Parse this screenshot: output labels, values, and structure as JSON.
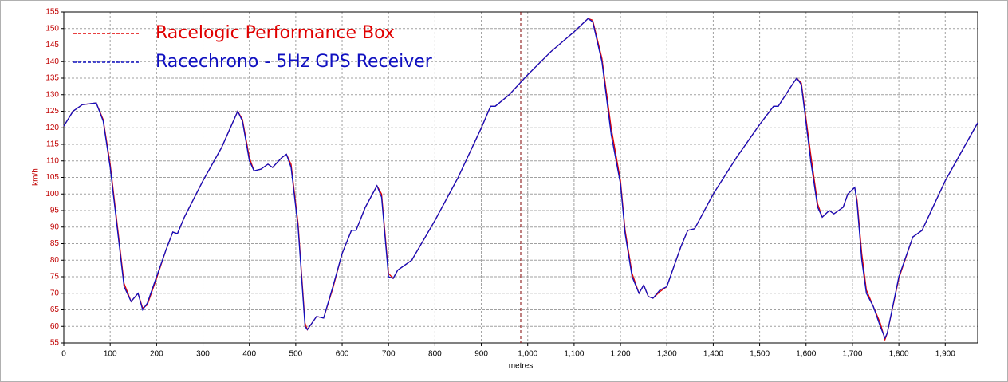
{
  "chart_data": {
    "type": "line",
    "xlabel": "metres",
    "ylabel": "km/h",
    "xlim": [
      0,
      1970
    ],
    "ylim": [
      55,
      155
    ],
    "xticks": [
      0,
      100,
      200,
      300,
      400,
      500,
      600,
      700,
      800,
      900,
      {
        "value": 1000,
        "label": "1,000"
      },
      {
        "value": 1100,
        "label": "1,100"
      },
      {
        "value": 1200,
        "label": "1,200"
      },
      {
        "value": 1300,
        "label": "1,300"
      },
      {
        "value": 1400,
        "label": "1,400"
      },
      {
        "value": 1500,
        "label": "1,500"
      },
      {
        "value": 1600,
        "label": "1,600"
      },
      {
        "value": 1700,
        "label": "1,700"
      },
      {
        "value": 1800,
        "label": "1,800"
      },
      {
        "value": 1900,
        "label": "1,900"
      }
    ],
    "yticks": [
      55,
      60,
      65,
      70,
      75,
      80,
      85,
      90,
      95,
      100,
      105,
      110,
      115,
      120,
      125,
      130,
      135,
      140,
      145,
      150,
      155
    ],
    "grid": true,
    "cursor": 985,
    "legend_position": "upper left",
    "x": [
      0,
      20,
      40,
      70,
      85,
      100,
      115,
      130,
      145,
      160,
      170,
      180,
      200,
      220,
      235,
      245,
      260,
      300,
      340,
      375,
      385,
      400,
      410,
      425,
      440,
      450,
      470,
      480,
      490,
      505,
      520,
      525,
      545,
      560,
      580,
      600,
      620,
      630,
      650,
      675,
      685,
      700,
      710,
      720,
      750,
      800,
      850,
      900,
      920,
      930,
      960,
      1000,
      1050,
      1100,
      1130,
      1140,
      1160,
      1180,
      1200,
      1210,
      1225,
      1240,
      1250,
      1260,
      1270,
      1285,
      1300,
      1330,
      1345,
      1360,
      1400,
      1450,
      1500,
      1530,
      1540,
      1570,
      1580,
      1590,
      1610,
      1625,
      1635,
      1650,
      1660,
      1680,
      1690,
      1705,
      1710,
      1720,
      1730,
      1745,
      1760,
      1770,
      1775,
      1800,
      1830,
      1850,
      1900,
      1970
    ],
    "series": [
      {
        "name": "Racelogic Performance Box",
        "color": "#e00000",
        "values": [
          120.5,
          125,
          127,
          127.5,
          122.5,
          109,
          91,
          73,
          67.5,
          70,
          65.5,
          66.5,
          74.5,
          83,
          88.5,
          88,
          93,
          104,
          114,
          125,
          122.5,
          111,
          107,
          107.5,
          109,
          108,
          111,
          112,
          109,
          91,
          61,
          59,
          63,
          62.5,
          71.5,
          82,
          89,
          89,
          96,
          102.5,
          100,
          76,
          74.5,
          77,
          80,
          92,
          105,
          120,
          126.5,
          126.5,
          130,
          136,
          143,
          149,
          153,
          152.5,
          141,
          120,
          104,
          89,
          76,
          70,
          72.5,
          69,
          68.5,
          70.5,
          72,
          84,
          89,
          89.5,
          100,
          111,
          121,
          126.5,
          126.5,
          133,
          135,
          133.5,
          112,
          97,
          93,
          95,
          94,
          96,
          100,
          102,
          98,
          82,
          71,
          66,
          61,
          56,
          58,
          74.5,
          87,
          89,
          104,
          121.5
        ]
      },
      {
        "name": "Racechrono - 5Hz GPS Receiver",
        "color": "#1010c0",
        "values": [
          120.5,
          125,
          127,
          127.5,
          122,
          108,
          90,
          72,
          67.5,
          70,
          65,
          67,
          75,
          83,
          88.5,
          88,
          93,
          104,
          114,
          125,
          122,
          110,
          107,
          107.5,
          109,
          108,
          111,
          112,
          108,
          90,
          60,
          59,
          63,
          62.5,
          72,
          82,
          89,
          89,
          96,
          102.5,
          99,
          75,
          74.5,
          77,
          80,
          92,
          105,
          120,
          126.5,
          126.5,
          130,
          136,
          143,
          149,
          153,
          152,
          140,
          118,
          103,
          88,
          75,
          70,
          72.5,
          69,
          68.5,
          71,
          72,
          84,
          89,
          89.5,
          100,
          111,
          121,
          126.5,
          126.5,
          133,
          135,
          133,
          110,
          96,
          93,
          95,
          94,
          96,
          100,
          102,
          97,
          80,
          70,
          66,
          60,
          56.5,
          58,
          75,
          87,
          89,
          104,
          121.5
        ]
      }
    ]
  }
}
